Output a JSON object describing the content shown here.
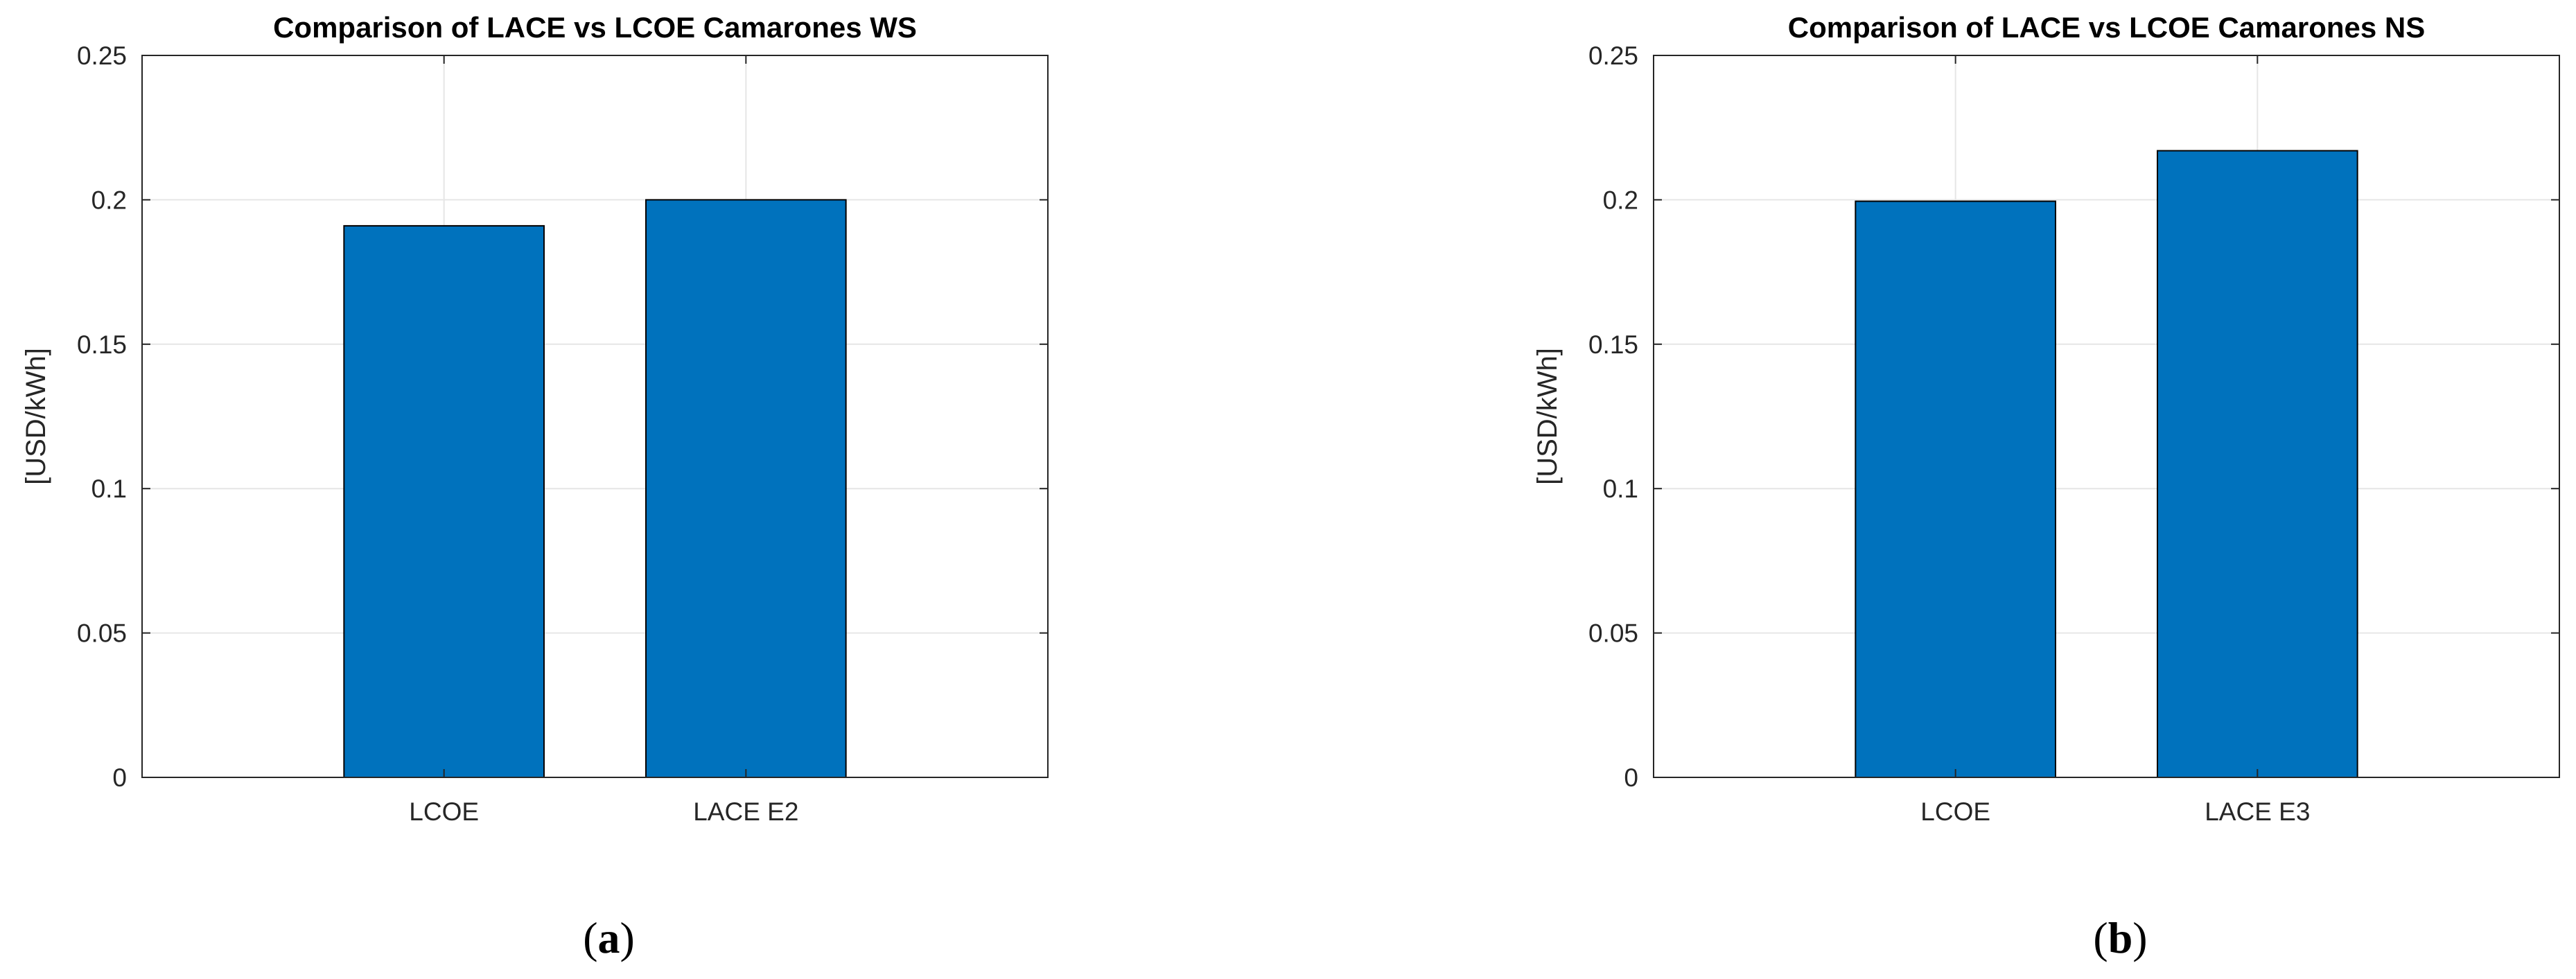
{
  "chart_data": [
    {
      "type": "bar",
      "title": "Comparison of LACE vs LCOE Camarones WS",
      "categories": [
        "LCOE",
        "LACE E2"
      ],
      "values": [
        0.191,
        0.2
      ],
      "ylabel": "[USD/kWh]",
      "xlabel": "",
      "ylim": [
        0,
        0.25
      ],
      "yticks": [
        0,
        0.05,
        0.1,
        0.15,
        0.2,
        0.25
      ],
      "ytick_labels": [
        "0",
        "0.05",
        "0.1",
        "0.15",
        "0.2",
        "0.25"
      ],
      "grid": true,
      "bar_color": "#0072BD",
      "panel_label": {
        "open": "(",
        "letter": "a",
        "close": ")"
      }
    },
    {
      "type": "bar",
      "title": "Comparison of LACE vs LCOE Camarones NS",
      "categories": [
        "LCOE",
        "LACE E3"
      ],
      "values": [
        0.1995,
        0.217
      ],
      "ylabel": "[USD/kWh]",
      "xlabel": "",
      "ylim": [
        0,
        0.25
      ],
      "yticks": [
        0,
        0.05,
        0.1,
        0.15,
        0.2,
        0.25
      ],
      "ytick_labels": [
        "0",
        "0.05",
        "0.1",
        "0.15",
        "0.2",
        "0.25"
      ],
      "grid": true,
      "bar_color": "#0072BD",
      "panel_label": {
        "open": "(",
        "letter": "b",
        "close": ")"
      }
    }
  ]
}
